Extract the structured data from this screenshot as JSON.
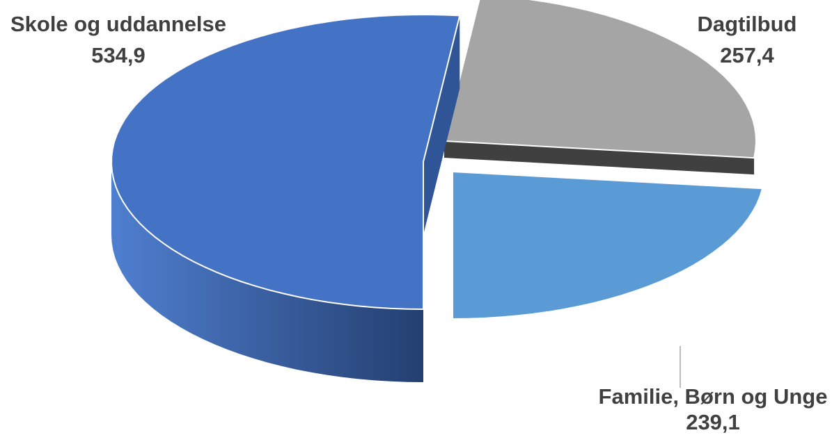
{
  "chart_data": {
    "type": "pie",
    "style": "3d-exploded",
    "slices": [
      {
        "label": "Skole og uddannelse",
        "value": 534.9,
        "value_label": "534,9",
        "color": "#4472C4"
      },
      {
        "label": "Dagtilbud",
        "value": 257.4,
        "value_label": "257,4",
        "color": "#A5A5A5"
      },
      {
        "label": "Familie, Børn og Unge",
        "value": 239.1,
        "value_label": "239,1",
        "color": "#5B9BD5"
      }
    ]
  }
}
